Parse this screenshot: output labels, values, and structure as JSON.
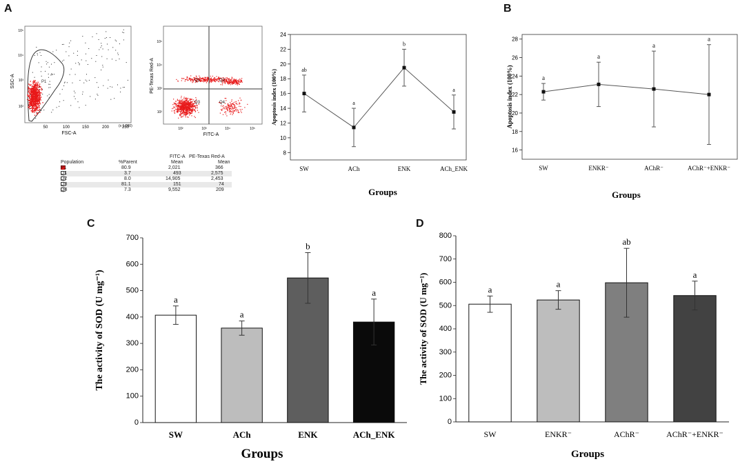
{
  "panels": {
    "a": "A",
    "b": "B",
    "c": "C",
    "d": "D"
  },
  "scatter1": {
    "x_label": "FSC-A",
    "x_ticks": [
      "50",
      "100",
      "150",
      "200",
      "250"
    ],
    "x_unit": "(x 1,000)",
    "y_label": "SSC-A",
    "y_ticks": [
      "10²",
      "10³",
      "10⁴",
      "10⁵"
    ],
    "gate_label": "P1"
  },
  "scatter2": {
    "x_label": "FITC-A",
    "x_ticks": [
      "10²",
      "10³",
      "10⁴",
      "10⁵"
    ],
    "y_label": "PE-Texas Red-A",
    "y_ticks": [
      "10²",
      "10³",
      "10⁴",
      "10⁵"
    ],
    "quadrants": [
      "Q1",
      "Q2",
      "Q3",
      "Q4"
    ]
  },
  "population_table": {
    "headers": [
      "Population",
      "%Parent",
      "FITC-A Mean",
      "PE-Texas Red-A Mean"
    ],
    "header_top": [
      "",
      "",
      "FITC-A",
      "PE-Texas Red-A"
    ],
    "header_bottom": [
      "Population",
      "%Parent",
      "Mean",
      "Mean"
    ],
    "rows": [
      {
        "name": "P1",
        "parent": "80.9",
        "fitc": "2,021",
        "pe": "366"
      },
      {
        "name": "Q1",
        "parent": "3.7",
        "fitc": "493",
        "pe": "2,575"
      },
      {
        "name": "Q2",
        "parent": "8.0",
        "fitc": "14,905",
        "pe": "2,453"
      },
      {
        "name": "Q3",
        "parent": "81.1",
        "fitc": "151",
        "pe": "74"
      },
      {
        "name": "Q4",
        "parent": "7.3",
        "fitc": "9,552",
        "pe": "209"
      }
    ]
  },
  "chart_data": [
    {
      "id": "A-line",
      "type": "line",
      "categories": [
        "SW",
        "ACh",
        "ENK",
        "ACh_ENK"
      ],
      "values": [
        16.0,
        11.4,
        19.5,
        13.5
      ],
      "errors": [
        2.5,
        2.6,
        2.5,
        2.3
      ],
      "letters": [
        "ab",
        "a",
        "b",
        "a"
      ],
      "xlabel": "Groups",
      "ylabel": "Apoptosis index (100%)",
      "ylim": [
        7,
        24
      ],
      "yticks": [
        8,
        10,
        12,
        14,
        16,
        18,
        20,
        22,
        24
      ]
    },
    {
      "id": "B-line",
      "type": "line",
      "categories": [
        "SW",
        "ENKR⁻",
        "AChR⁻",
        "AChR⁻+ENKR⁻"
      ],
      "values": [
        22.3,
        23.1,
        22.6,
        22.0
      ],
      "errors": [
        0.9,
        2.4,
        4.1,
        5.4
      ],
      "letters": [
        "a",
        "a",
        "a",
        "a"
      ],
      "xlabel": "Groups",
      "ylabel": "Apoptosis index (100%)",
      "ylim": [
        15,
        28.5
      ],
      "yticks": [
        16,
        18,
        20,
        22,
        24,
        26,
        28
      ]
    },
    {
      "id": "C-bar",
      "type": "bar",
      "categories": [
        "SW",
        "ACh",
        "ENK",
        "ACh_ENK"
      ],
      "values": [
        407,
        358,
        548,
        381
      ],
      "errors": [
        35,
        27,
        96,
        87
      ],
      "letters": [
        "a",
        "a",
        "b",
        "a"
      ],
      "colors": [
        "#ffffff",
        "#bdbdbd",
        "#5e5e5e",
        "#0a0a0a"
      ],
      "xlabel": "Groups",
      "ylabel": "The activity of SOD (U mg⁻¹)",
      "ylim": [
        0,
        700
      ],
      "yticks": [
        0,
        100,
        200,
        300,
        400,
        500,
        600,
        700
      ]
    },
    {
      "id": "D-bar",
      "type": "bar",
      "categories": [
        "SW",
        "ENKR⁻",
        "AChR⁻",
        "AChR⁻+ENKR⁻"
      ],
      "values": [
        506,
        524,
        598,
        543
      ],
      "errors": [
        35,
        40,
        148,
        62
      ],
      "letters": [
        "a",
        "a",
        "ab",
        "a"
      ],
      "colors": [
        "#ffffff",
        "#bdbdbd",
        "#7f7f7f",
        "#424242"
      ],
      "xlabel": "Groups",
      "ylabel": "The activity of SOD (U mg⁻¹)",
      "ylim": [
        0,
        800
      ],
      "yticks": [
        0,
        100,
        200,
        300,
        400,
        500,
        600,
        700,
        800
      ]
    }
  ]
}
